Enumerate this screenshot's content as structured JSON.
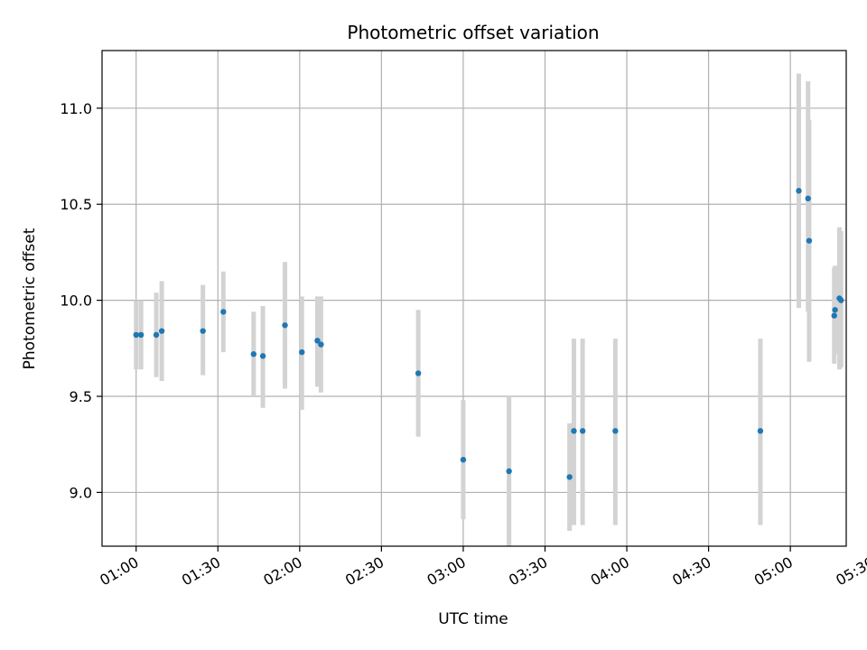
{
  "chart_data": {
    "type": "scatter",
    "title": "Photometric offset variation",
    "xlabel": "UTC time",
    "ylabel": "Photometric offset",
    "grid": true,
    "x_unit": "minutes since 00:00 UTC",
    "xlim": [
      47.5,
      320.5
    ],
    "ylim": [
      8.72,
      11.3
    ],
    "xticks": [
      {
        "value": 60,
        "label": "01:00"
      },
      {
        "value": 90,
        "label": "01:30"
      },
      {
        "value": 120,
        "label": "02:00"
      },
      {
        "value": 150,
        "label": "02:30"
      },
      {
        "value": 180,
        "label": "03:00"
      },
      {
        "value": 210,
        "label": "03:30"
      },
      {
        "value": 240,
        "label": "04:00"
      },
      {
        "value": 270,
        "label": "04:30"
      },
      {
        "value": 300,
        "label": "05:00"
      },
      {
        "value": 330,
        "label": "05:30"
      }
    ],
    "yticks": [
      {
        "value": 9.0,
        "label": "9.0"
      },
      {
        "value": 9.5,
        "label": "9.5"
      },
      {
        "value": 10.0,
        "label": "10.0"
      },
      {
        "value": 10.5,
        "label": "10.5"
      },
      {
        "value": 11.0,
        "label": "11.0"
      }
    ],
    "series": [
      {
        "name": "Photometric offset",
        "color": "#1f77b4",
        "errorbar_color": "#d3d3d3",
        "points": [
          {
            "x": 60.0,
            "y": 9.82,
            "low": 9.64,
            "high": 10.0
          },
          {
            "x": 61.8,
            "y": 9.82,
            "low": 9.64,
            "high": 10.0
          },
          {
            "x": 67.4,
            "y": 9.82,
            "low": 9.6,
            "high": 10.04
          },
          {
            "x": 69.4,
            "y": 9.84,
            "low": 9.58,
            "high": 10.1
          },
          {
            "x": 84.5,
            "y": 9.84,
            "low": 9.61,
            "high": 10.08
          },
          {
            "x": 92.0,
            "y": 9.94,
            "low": 9.73,
            "high": 10.15
          },
          {
            "x": 103.1,
            "y": 9.72,
            "low": 9.5,
            "high": 9.94
          },
          {
            "x": 106.5,
            "y": 9.71,
            "low": 9.44,
            "high": 9.97
          },
          {
            "x": 114.6,
            "y": 9.87,
            "low": 9.54,
            "high": 10.2
          },
          {
            "x": 120.8,
            "y": 9.73,
            "low": 9.43,
            "high": 10.02
          },
          {
            "x": 126.5,
            "y": 9.79,
            "low": 9.55,
            "high": 10.02
          },
          {
            "x": 127.8,
            "y": 9.77,
            "low": 9.52,
            "high": 10.02
          },
          {
            "x": 163.5,
            "y": 9.62,
            "low": 9.29,
            "high": 9.95
          },
          {
            "x": 180.0,
            "y": 9.17,
            "low": 8.86,
            "high": 9.48
          },
          {
            "x": 196.8,
            "y": 9.11,
            "low": 8.72,
            "high": 9.5
          },
          {
            "x": 219.0,
            "y": 9.08,
            "low": 8.8,
            "high": 9.36
          },
          {
            "x": 220.6,
            "y": 9.32,
            "low": 8.83,
            "high": 9.8
          },
          {
            "x": 223.8,
            "y": 9.32,
            "low": 8.83,
            "high": 9.8
          },
          {
            "x": 235.8,
            "y": 9.32,
            "low": 8.83,
            "high": 9.8
          },
          {
            "x": 289.0,
            "y": 9.32,
            "low": 8.83,
            "high": 9.8
          },
          {
            "x": 303.1,
            "y": 10.57,
            "low": 9.96,
            "high": 11.18
          },
          {
            "x": 306.5,
            "y": 10.53,
            "low": 9.94,
            "high": 11.14
          },
          {
            "x": 306.9,
            "y": 10.31,
            "low": 9.68,
            "high": 10.94
          },
          {
            "x": 316.1,
            "y": 9.92,
            "low": 9.67,
            "high": 10.17
          },
          {
            "x": 316.4,
            "y": 9.95,
            "low": 9.72,
            "high": 10.18
          },
          {
            "x": 318.0,
            "y": 10.01,
            "low": 9.64,
            "high": 10.38
          },
          {
            "x": 318.6,
            "y": 10.0,
            "low": 9.65,
            "high": 10.36
          }
        ]
      }
    ]
  }
}
